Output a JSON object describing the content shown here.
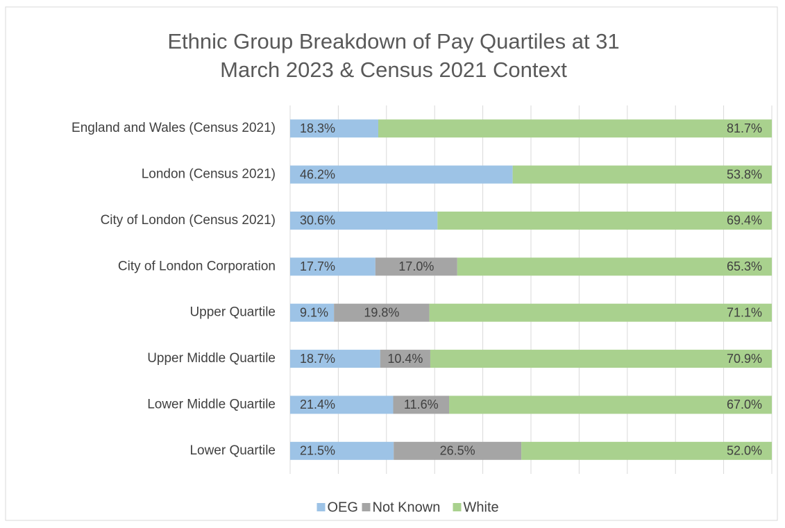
{
  "chart_data": {
    "type": "stacked_bar_horizontal",
    "title": [
      "Ethnic Group Breakdown of Pay Quartiles at 31",
      "March 2023 & Census 2021 Context"
    ],
    "categories": [
      "England and Wales (Census 2021)",
      "London (Census 2021)",
      "City of London (Census 2021)",
      "City of London Corporation",
      "Upper Quartile",
      "Upper Middle Quartile",
      "Lower Middle Quartile",
      "Lower Quartile"
    ],
    "series": [
      {
        "name": "OEG",
        "color": "#9dc3e6",
        "values": [
          18.3,
          46.2,
          30.6,
          17.7,
          9.1,
          18.7,
          21.4,
          21.5
        ],
        "value_labels": [
          "18.3%",
          "46.2%",
          "30.6%",
          "17.7%",
          "9.1%",
          "18.7%",
          "21.4%",
          "21.5%"
        ]
      },
      {
        "name": "Not Known",
        "color": "#a5a5a5",
        "values": [
          0,
          0,
          0,
          17.0,
          19.8,
          10.4,
          11.6,
          26.5
        ],
        "value_labels": [
          null,
          null,
          null,
          "17.0%",
          "19.8%",
          "10.4%",
          "11.6%",
          "26.5%"
        ]
      },
      {
        "name": "White",
        "color": "#a9d18e",
        "values": [
          81.7,
          53.8,
          69.4,
          65.3,
          71.1,
          70.9,
          67.0,
          52.0
        ],
        "value_labels": [
          "81.7%",
          "53.8%",
          "69.4%",
          "65.3%",
          "71.1%",
          "70.9%",
          "67.0%",
          "52.0%"
        ]
      }
    ],
    "xlim": [
      0,
      100
    ],
    "xticks": [
      0,
      10,
      20,
      30,
      40,
      50,
      60,
      70,
      80,
      90,
      100
    ],
    "grid": true,
    "legend": "bottom"
  }
}
